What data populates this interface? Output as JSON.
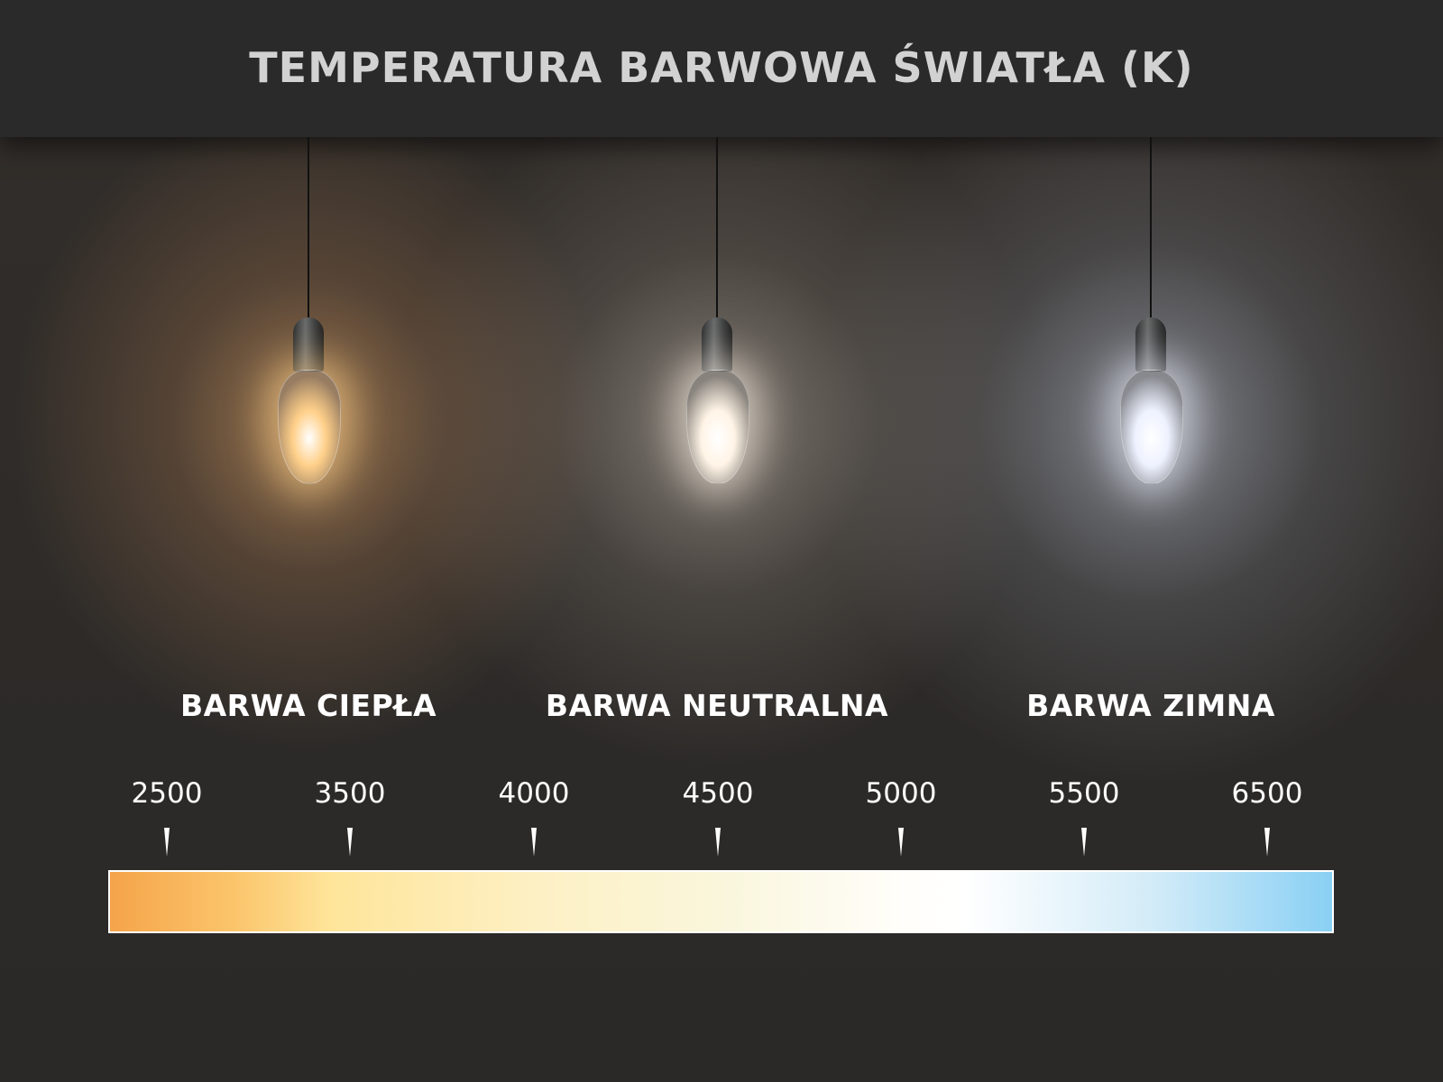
{
  "title": "TEMPERATURA BARWOWA ŚWIATŁA (K)",
  "lamps": [
    {
      "label": "BARWA CIEPŁA",
      "color": "#ffd08a"
    },
    {
      "label": "BARWA NEUTRALNA",
      "color": "#fff4e6"
    },
    {
      "label": "BARWA ZIMNA",
      "color": "#eef2ff"
    }
  ],
  "scale": {
    "ticks": [
      "2500",
      "3500",
      "4000",
      "4500",
      "5000",
      "5500",
      "6500"
    ],
    "gradient_start": "#f5a44a",
    "gradient_end": "#8ad0f4"
  }
}
